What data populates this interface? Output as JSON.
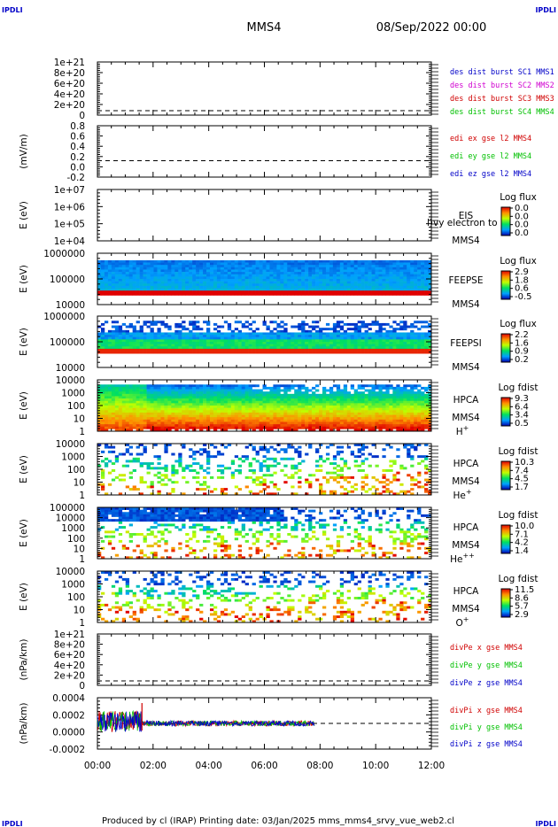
{
  "header": {
    "left_logo": "IPDLI",
    "right_logo": "IPDLI",
    "title": "MMS4",
    "date": "08/Sep/2022 00:00"
  },
  "footer": {
    "text": "Produced by cl (IRAP)   Printing date: 03/Jan/2025   mms_mms4_srvy_vue_web2.cl",
    "left_logo": "IPDLI",
    "right_logo": "IPDLI"
  },
  "colors": {
    "black": "#000000",
    "blue": "#0000c8",
    "red": "#d00000",
    "green": "#00c000",
    "magenta": "#d000d0"
  },
  "chart_data": [
    {
      "type": "line",
      "ylabel": "",
      "yticks": [
        "1e+21",
        "8e+20",
        "6e+20",
        "4e+20",
        "2e+20",
        "0"
      ],
      "ylim": [
        0,
        1e+21
      ],
      "series": [
        {
          "name": "des dist burst SC1 MMS1",
          "color": "blue",
          "values": []
        },
        {
          "name": "des dist burst SC2 MMS2",
          "color": "magenta",
          "values": []
        },
        {
          "name": "des dist burst SC3 MMS3",
          "color": "red",
          "values": []
        },
        {
          "name": "des dist burst SC4 MMS4",
          "color": "green",
          "values": []
        }
      ],
      "zero_line": true
    },
    {
      "type": "line",
      "ylabel": "(mV/m)",
      "yticks": [
        "0.8",
        "0.6",
        "0.4",
        "0.2",
        "0.0",
        "-0.2"
      ],
      "ylim": [
        -0.3,
        0.8
      ],
      "series": [
        {
          "name": "edi ex gse l2 MMS4",
          "color": "red",
          "values": []
        },
        {
          "name": "edi ey gse l2 MMS4",
          "color": "green",
          "values": []
        },
        {
          "name": "edi ez gse l2 MMS4",
          "color": "blue",
          "values": []
        }
      ],
      "zero_line": true
    },
    {
      "type": "heatmap",
      "ylabel": "E (eV)",
      "yticks": [
        "1e+07",
        "1e+06",
        "1e+05",
        "1e+04"
      ],
      "yscale": "log",
      "labels": [
        "EIS",
        "MMS4"
      ],
      "overlay_text": "l)vy electron to",
      "colorbar": {
        "title": "Log flux",
        "ticks": [
          "0.0",
          "0.0",
          "0.0",
          "0.0"
        ]
      },
      "empty": true
    },
    {
      "type": "heatmap",
      "ylabel": "E (eV)",
      "yticks": [
        "1000000",
        "100000",
        "10000"
      ],
      "yscale": "log",
      "labels": [
        "FEEPSE",
        "MMS4"
      ],
      "colorbar": {
        "title": "Log flux",
        "ticks": [
          "2.9",
          "1.8",
          "0.6",
          "-0.5"
        ]
      },
      "xrange_hours": [
        0,
        12
      ]
    },
    {
      "type": "heatmap",
      "ylabel": "E (eV)",
      "yticks": [
        "1000000",
        "100000",
        "10000"
      ],
      "yscale": "log",
      "labels": [
        "FEEPSI",
        "MMS4"
      ],
      "colorbar": {
        "title": "Log flux",
        "ticks": [
          "2.2",
          "1.6",
          "0.9",
          "0.2"
        ]
      },
      "xrange_hours": [
        0,
        12
      ]
    },
    {
      "type": "heatmap",
      "ylabel": "E (eV)",
      "yticks": [
        "10000",
        "1000",
        "100",
        "10",
        "1"
      ],
      "yscale": "log",
      "labels": [
        "HPCA",
        "MMS4"
      ],
      "species": "H",
      "species_sup": "+",
      "colorbar": {
        "title": "Log fdist",
        "ticks": [
          "9.3",
          "6.4",
          "3.4",
          "0.5"
        ]
      },
      "xrange_hours": [
        0,
        12
      ]
    },
    {
      "type": "heatmap",
      "ylabel": "E (eV)",
      "yticks": [
        "10000",
        "1000",
        "100",
        "10",
        "1"
      ],
      "yscale": "log",
      "labels": [
        "HPCA",
        "MMS4"
      ],
      "species": "He",
      "species_sup": "+",
      "colorbar": {
        "title": "Log fdist",
        "ticks": [
          "10.3",
          "7.4",
          "4.5",
          "1.7"
        ]
      },
      "xrange_hours": [
        0,
        12
      ]
    },
    {
      "type": "heatmap",
      "ylabel": "E (eV)",
      "yticks": [
        "100000",
        "10000",
        "1000",
        "100",
        "10",
        "1"
      ],
      "yscale": "log",
      "labels": [
        "HPCA",
        "MMS4"
      ],
      "species": "He",
      "species_sup": "++",
      "colorbar": {
        "title": "Log fdist",
        "ticks": [
          "10.0",
          "7.1",
          "4.2",
          "1.4"
        ]
      },
      "xrange_hours": [
        0,
        12
      ]
    },
    {
      "type": "heatmap",
      "ylabel": "E (eV)",
      "yticks": [
        "10000",
        "1000",
        "100",
        "10",
        "1"
      ],
      "yscale": "log",
      "labels": [
        "HPCA",
        "MMS4"
      ],
      "species": "O",
      "species_sup": "+",
      "colorbar": {
        "title": "Log fdist",
        "ticks": [
          "11.5",
          "8.6",
          "5.7",
          "2.9"
        ]
      },
      "xrange_hours": [
        0,
        12
      ]
    },
    {
      "type": "line",
      "ylabel": "(nPa/km)",
      "yticks": [
        "1e+21",
        "8e+20",
        "6e+20",
        "4e+20",
        "2e+20",
        "0"
      ],
      "ylim": [
        0,
        1e+21
      ],
      "series": [
        {
          "name": "divPe x gse MMS4",
          "color": "red",
          "values": []
        },
        {
          "name": "divPe y gse MMS4",
          "color": "green",
          "values": []
        },
        {
          "name": "divPe z gse MMS4",
          "color": "blue",
          "values": []
        }
      ],
      "zero_line": true
    },
    {
      "type": "line",
      "ylabel": "(nPa/km)",
      "yticks": [
        "0.0004",
        "0.0002",
        "0.0000",
        "-0.0002"
      ],
      "ylim": [
        -0.0003,
        0.0005
      ],
      "series": [
        {
          "name": "divPi x gse MMS4",
          "color": "red"
        },
        {
          "name": "divPi y gse MMS4",
          "color": "green"
        },
        {
          "name": "divPi z gse MMS4",
          "color": "blue"
        }
      ],
      "data_span_hours": [
        0,
        7.8
      ],
      "spike_time_hours": 1.6,
      "zero_line": true
    }
  ],
  "xaxis": {
    "ticks": [
      "00:00",
      "02:00",
      "04:00",
      "06:00",
      "08:00",
      "10:00",
      "12:00"
    ],
    "range_hours": [
      0,
      12
    ]
  }
}
